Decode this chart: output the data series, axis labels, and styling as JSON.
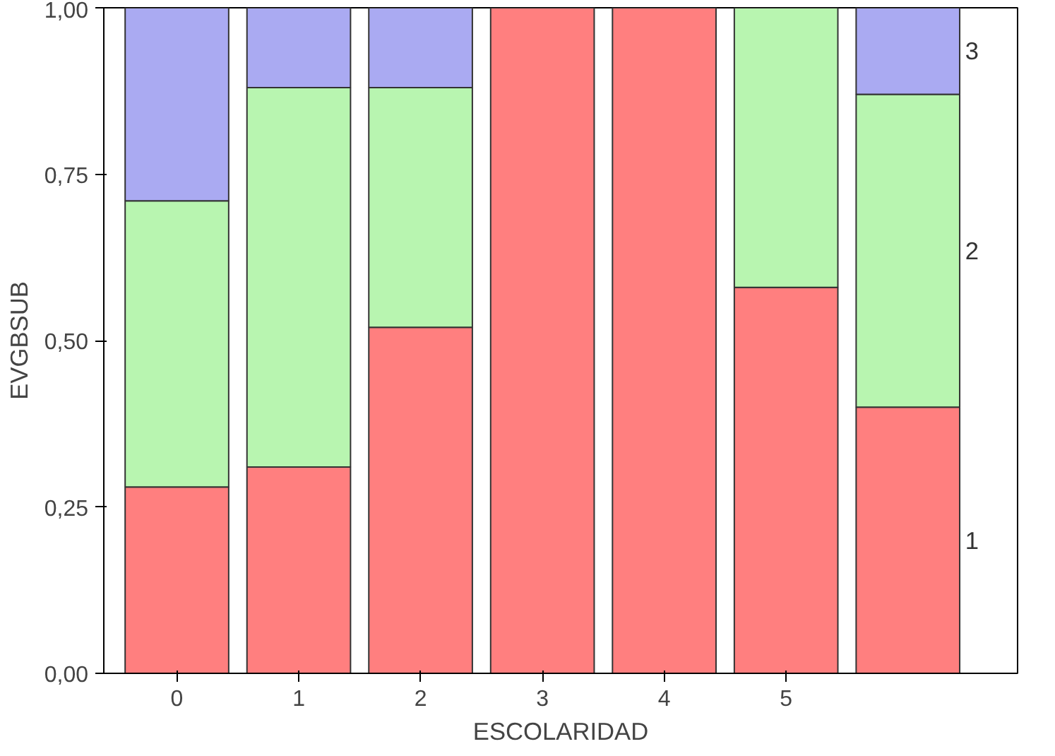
{
  "chart_data": {
    "type": "bar",
    "stacked": true,
    "xlabel": "ESCOLARIDAD",
    "ylabel": "EVGBSUB",
    "categories": [
      "0",
      "1",
      "2",
      "3",
      "4",
      "5",
      null
    ],
    "series": [
      {
        "name": "1",
        "color": "#ff7f7f",
        "values": [
          0.28,
          0.31,
          0.52,
          1.0,
          1.0,
          0.58,
          0.4
        ]
      },
      {
        "name": "2",
        "color": "#b8f5b0",
        "values": [
          0.43,
          0.57,
          0.36,
          0,
          0,
          0.42,
          0.47
        ]
      },
      {
        "name": "3",
        "color": "#aaaaf2",
        "values": [
          0.29,
          0.12,
          0.12,
          0,
          0,
          0,
          0.13
        ]
      }
    ],
    "ylim": [
      0,
      1
    ],
    "yticks": [
      {
        "value": 0,
        "label": "0,00"
      },
      {
        "value": 0.25,
        "label": "0,25"
      },
      {
        "value": 0.5,
        "label": "0,50"
      },
      {
        "value": 0.75,
        "label": "0,75"
      },
      {
        "value": 1,
        "label": "1,00"
      }
    ],
    "grid": false
  }
}
